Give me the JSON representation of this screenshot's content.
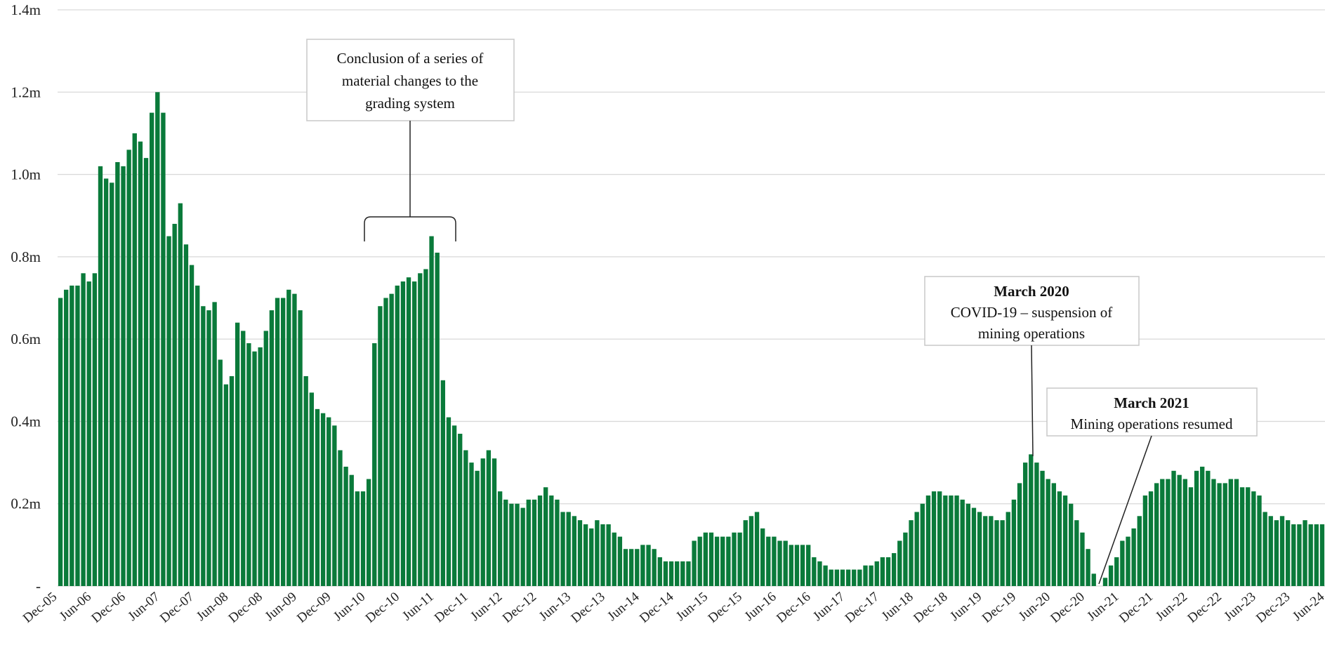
{
  "chart_data": {
    "type": "bar",
    "y_axis": {
      "min": 0,
      "max": 1.4,
      "ticks": [
        0,
        0.2,
        0.4,
        0.6,
        0.8,
        1.0,
        1.2,
        1.4
      ],
      "tick_labels": [
        "-",
        "0.2m",
        "0.4m",
        "0.6m",
        "0.8m",
        "1.0m",
        "1.2m",
        "1.4m"
      ]
    },
    "grid": true,
    "bar_color": "#0a7a3a",
    "x_labels": [
      "Dec-05",
      "Jun-06",
      "Dec-06",
      "Jun-07",
      "Dec-07",
      "Jun-08",
      "Dec-08",
      "Jun-09",
      "Dec-09",
      "Jun-10",
      "Dec-10",
      "Jun-11",
      "Dec-11",
      "Jun-12",
      "Dec-12",
      "Jun-13",
      "Dec-13",
      "Jun-14",
      "Dec-14",
      "Jun-15",
      "Dec-15",
      "Jun-16",
      "Dec-16",
      "Jun-17",
      "Dec-17",
      "Jun-18",
      "Dec-18",
      "Jun-19",
      "Dec-19",
      "Jun-20",
      "Dec-20",
      "Jun-21",
      "Dec-21",
      "Jun-22",
      "Dec-22",
      "Jun-23",
      "Dec-23",
      "Jun-24"
    ],
    "values": [
      0.7,
      0.72,
      0.73,
      0.73,
      0.76,
      0.74,
      0.76,
      1.02,
      0.99,
      0.98,
      1.03,
      1.02,
      1.06,
      1.1,
      1.08,
      1.04,
      1.15,
      1.2,
      1.15,
      0.85,
      0.88,
      0.93,
      0.83,
      0.78,
      0.73,
      0.68,
      0.67,
      0.69,
      0.55,
      0.49,
      0.51,
      0.64,
      0.62,
      0.59,
      0.57,
      0.58,
      0.62,
      0.67,
      0.7,
      0.7,
      0.72,
      0.71,
      0.67,
      0.51,
      0.47,
      0.43,
      0.42,
      0.41,
      0.39,
      0.33,
      0.29,
      0.27,
      0.23,
      0.23,
      0.26,
      0.59,
      0.68,
      0.7,
      0.71,
      0.73,
      0.74,
      0.75,
      0.74,
      0.76,
      0.77,
      0.85,
      0.81,
      0.5,
      0.41,
      0.39,
      0.37,
      0.33,
      0.3,
      0.28,
      0.31,
      0.33,
      0.31,
      0.23,
      0.21,
      0.2,
      0.2,
      0.19,
      0.21,
      0.21,
      0.22,
      0.24,
      0.22,
      0.21,
      0.18,
      0.18,
      0.17,
      0.16,
      0.15,
      0.14,
      0.16,
      0.15,
      0.15,
      0.13,
      0.12,
      0.09,
      0.09,
      0.09,
      0.1,
      0.1,
      0.09,
      0.07,
      0.06,
      0.06,
      0.06,
      0.06,
      0.06,
      0.11,
      0.12,
      0.13,
      0.13,
      0.12,
      0.12,
      0.12,
      0.13,
      0.13,
      0.16,
      0.17,
      0.18,
      0.14,
      0.12,
      0.12,
      0.11,
      0.11,
      0.1,
      0.1,
      0.1,
      0.1,
      0.07,
      0.06,
      0.05,
      0.04,
      0.04,
      0.04,
      0.04,
      0.04,
      0.04,
      0.05,
      0.05,
      0.06,
      0.07,
      0.07,
      0.08,
      0.11,
      0.13,
      0.16,
      0.18,
      0.2,
      0.22,
      0.23,
      0.23,
      0.22,
      0.22,
      0.22,
      0.21,
      0.2,
      0.19,
      0.18,
      0.17,
      0.17,
      0.16,
      0.16,
      0.18,
      0.21,
      0.25,
      0.3,
      0.32,
      0.3,
      0.28,
      0.26,
      0.25,
      0.23,
      0.22,
      0.2,
      0.16,
      0.13,
      0.09,
      0.03,
      0.0,
      0.02,
      0.05,
      0.07,
      0.11,
      0.12,
      0.14,
      0.17,
      0.22,
      0.23,
      0.25,
      0.26,
      0.26,
      0.28,
      0.27,
      0.26,
      0.24,
      0.28,
      0.29,
      0.28,
      0.26,
      0.25,
      0.25,
      0.26,
      0.26,
      0.24,
      0.24,
      0.23,
      0.22,
      0.18,
      0.17,
      0.16,
      0.17,
      0.16,
      0.15,
      0.15,
      0.16,
      0.15,
      0.15,
      0.15
    ],
    "annotations": [
      {
        "title": "",
        "lines": [
          "Conclusion of a series of",
          "material changes to the",
          "grading system"
        ]
      },
      {
        "title": "March 2020",
        "lines": [
          "COVID-19 – suspension of",
          "mining operations"
        ]
      },
      {
        "title": "March 2021",
        "lines": [
          "Mining operations resumed"
        ]
      }
    ]
  }
}
